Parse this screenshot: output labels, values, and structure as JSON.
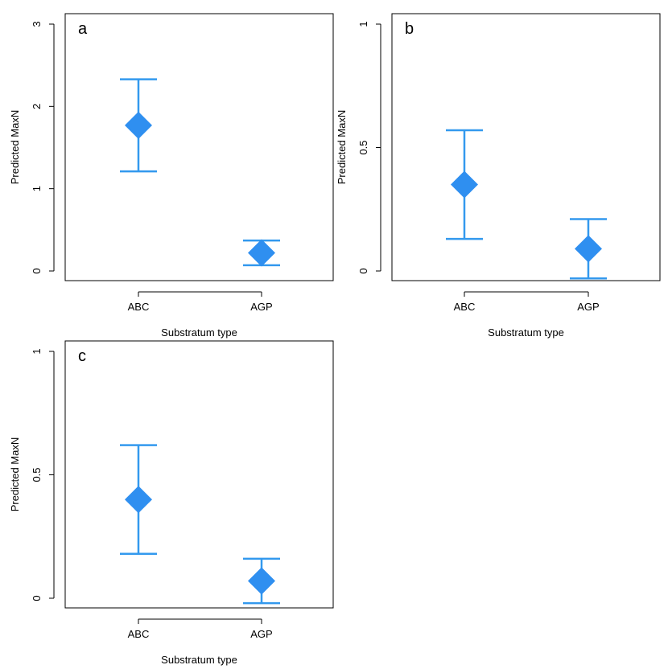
{
  "colors": {
    "series": "#2f8ff0",
    "axes": "#000000",
    "background": "#ffffff"
  },
  "chart_data": [
    {
      "type": "scatter",
      "panel_label": "a",
      "xlabel": "Substratum type",
      "ylabel": "Predicted MaxN",
      "categories": [
        "ABC",
        "AGP"
      ],
      "ylim": [
        0,
        3
      ],
      "yticks": [
        0,
        1,
        2,
        3
      ],
      "ytick_labels": [
        "0",
        "1",
        "2",
        "3"
      ],
      "series": [
        {
          "values": [
            1.77,
            0.22
          ],
          "lower": [
            1.21,
            0.07
          ],
          "upper": [
            2.33,
            0.37
          ]
        }
      ]
    },
    {
      "type": "scatter",
      "panel_label": "b",
      "xlabel": "Substratum type",
      "ylabel": "Predicted MaxN",
      "categories": [
        "ABC",
        "AGP"
      ],
      "ylim": [
        0,
        1
      ],
      "yticks": [
        0,
        0.5,
        1
      ],
      "ytick_labels": [
        "0",
        "0.5",
        "1"
      ],
      "series": [
        {
          "values": [
            0.35,
            0.09
          ],
          "lower": [
            0.13,
            -0.03
          ],
          "upper": [
            0.57,
            0.21
          ]
        }
      ]
    },
    {
      "type": "scatter",
      "panel_label": "c",
      "xlabel": "Substratum type",
      "ylabel": "Predicted MaxN",
      "categories": [
        "ABC",
        "AGP"
      ],
      "ylim": [
        0,
        1
      ],
      "yticks": [
        0,
        0.5,
        1
      ],
      "ytick_labels": [
        "0",
        "0.5",
        "1"
      ],
      "series": [
        {
          "values": [
            0.4,
            0.07
          ],
          "lower": [
            0.18,
            -0.02
          ],
          "upper": [
            0.62,
            0.16
          ]
        }
      ]
    }
  ]
}
